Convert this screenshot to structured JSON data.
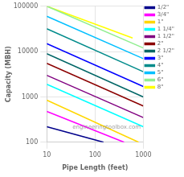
{
  "chart_data": {
    "type": "line",
    "xlabel": "Pipe Length (feet)",
    "ylabel": "Capacity (MBH)",
    "xlim": [
      10,
      1000
    ],
    "ylim": [
      100,
      100000
    ],
    "xticks": [
      10,
      100,
      1000
    ],
    "yticks": [
      100,
      1000,
      10000,
      100000
    ],
    "log": true,
    "grid": true,
    "legend": "upper right",
    "annotations": [
      "engineeringtoolbox.com"
    ],
    "series": [
      {
        "name": "1/2\"",
        "color": "#00008B",
        "x": [
          10,
          150
        ],
        "values": [
          220,
          100
        ]
      },
      {
        "name": "3/4\"",
        "color": "#FF00FF",
        "x": [
          10,
          400
        ],
        "values": [
          480,
          100
        ]
      },
      {
        "name": "1\"",
        "color": "#FFD700",
        "x": [
          10,
          800
        ],
        "values": [
          850,
          100
        ]
      },
      {
        "name": "1 1/4\"",
        "color": "#00FFFF",
        "x": [
          10,
          1000
        ],
        "values": [
          1900,
          220
        ]
      },
      {
        "name": "1 1/2\"",
        "color": "#800080",
        "x": [
          10,
          1000
        ],
        "values": [
          3000,
          350
        ]
      },
      {
        "name": "2\"",
        "color": "#8B0000",
        "x": [
          10,
          1000
        ],
        "values": [
          5500,
          630
        ]
      },
      {
        "name": "2 1/2\"",
        "color": "#006666",
        "x": [
          10,
          1000
        ],
        "values": [
          9000,
          1000
        ]
      },
      {
        "name": "3\"",
        "color": "#0000FF",
        "x": [
          10,
          1000
        ],
        "values": [
          15000,
          1700
        ]
      },
      {
        "name": "4\"",
        "color": "#008B8B",
        "x": [
          10,
          1000
        ],
        "values": [
          32000,
          3600
        ]
      },
      {
        "name": "5\"",
        "color": "#00BFFF",
        "x": [
          10,
          1000
        ],
        "values": [
          60000,
          7000
        ]
      },
      {
        "name": "6\"",
        "color": "#90EE90",
        "x": [
          10,
          1000
        ],
        "values": [
          100000,
          12000
        ]
      },
      {
        "name": "8\"",
        "color": "#FFFF00",
        "x": [
          10,
          600
        ],
        "values": [
          100000,
          20000
        ]
      }
    ]
  }
}
